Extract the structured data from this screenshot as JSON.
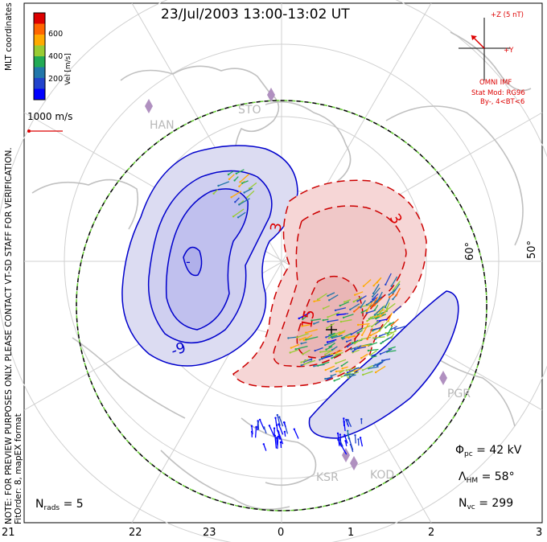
{
  "title": "23/Jul/2003 13:00-13:02 UT",
  "colorbar": {
    "axis_label": "Vel [m/s]",
    "ticks": [
      "600",
      "400",
      "200"
    ],
    "colors": [
      "#dd0000",
      "#ff6600",
      "#ffaa00",
      "#99cc33",
      "#22aa55",
      "#2277aa",
      "#2244cc",
      "#0000ff"
    ]
  },
  "coordinate_note": "MLT coordinates",
  "disclaimer": "NOTE: FOR PREVIEW PURPOSES ONLY. PLEASE CONTACT VT-SD STAFF FOR VERIFICATION.",
  "fit_info": "FitOrder: 8, mapEX format",
  "velocity_scale": "1000 m/s",
  "imf": {
    "z_label": "+Z (5 nT)",
    "y_label": "+Y",
    "source": "OMNI IMF",
    "model": "Stat Mod: RG96",
    "condition": "By-, 4<BT<6"
  },
  "stations": [
    "HAN",
    "STO",
    "PGR",
    "KSR",
    "KOD"
  ],
  "lat_labels": [
    "60°",
    "50°"
  ],
  "contour_labels": {
    "negative": [
      "-9",
      "-"
    ],
    "positive": [
      "3",
      "3",
      "15"
    ]
  },
  "mlt_axis": [
    "21",
    "22",
    "23",
    "0",
    "1",
    "2",
    "3"
  ],
  "stats": {
    "phi_pc": {
      "symbol": "Φ",
      "sub": "pc",
      "text": "= 42 kV"
    },
    "lambda_hm": {
      "symbol": "Λ",
      "sub": "HM",
      "text": "= 58°"
    },
    "n_vc": {
      "symbol": "N",
      "sub": "vc",
      "text": "= 299"
    },
    "n_rads": {
      "symbol": "N",
      "sub": "rads",
      "text": "= 5"
    }
  },
  "colors": {
    "negative_fill": "#dcdcf2",
    "negative_line": "#0000cc",
    "positive_fill": "#f6d6d6",
    "positive_line": "#cc0000",
    "coastline": "#c0c0c0",
    "grid": "#d0d0d0",
    "boundary_dash": "#66cc33"
  }
}
